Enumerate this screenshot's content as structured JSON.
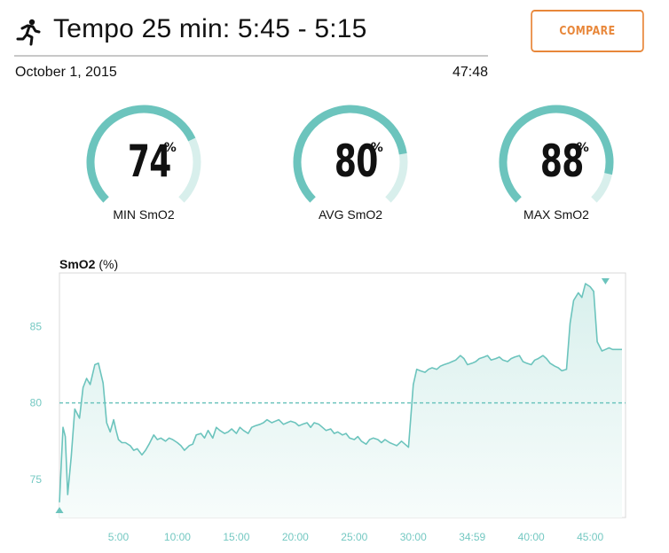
{
  "header": {
    "activity_icon": "running-person-icon",
    "title": "Tempo 25 min: 5:45 - 5:15",
    "compare_label": "COMPARE",
    "date": "October 1, 2015",
    "duration": "47:48"
  },
  "gauges": [
    {
      "value": "74",
      "unit": "%",
      "label": "MIN SmO2",
      "fraction": 0.74
    },
    {
      "value": "80",
      "unit": "%",
      "label": "AVG SmO2",
      "fraction": 0.8
    },
    {
      "value": "88",
      "unit": "%",
      "label": "MAX SmO2",
      "fraction": 0.88
    }
  ],
  "colors": {
    "accent": "#e8873a",
    "teal": "#6cc4bd",
    "teal_light": "#d8efec"
  },
  "chart_data": {
    "type": "area",
    "title": "SmO2",
    "unit": "(%)",
    "ylim": [
      72.5,
      88.5
    ],
    "xlim": [
      0,
      48
    ],
    "yticks": [
      75,
      80,
      85
    ],
    "xticks": [
      {
        "x": 5,
        "label": "5:00"
      },
      {
        "x": 10,
        "label": "10:00"
      },
      {
        "x": 15,
        "label": "15:00"
      },
      {
        "x": 20,
        "label": "20:00"
      },
      {
        "x": 25,
        "label": "25:00"
      },
      {
        "x": 30,
        "label": "30:00"
      },
      {
        "x": 35,
        "label": "34:59"
      },
      {
        "x": 40,
        "label": "40:00"
      },
      {
        "x": 45,
        "label": "45:00"
      }
    ],
    "reference_line": 80,
    "min_marker": {
      "x": 0,
      "y": 73.5
    },
    "max_marker": {
      "x": 46.3,
      "y": 88.3
    },
    "series": [
      {
        "x": [
          0,
          0.3,
          0.5,
          0.7,
          1.0,
          1.3,
          1.7,
          2.0,
          2.3,
          2.6,
          3.0,
          3.3,
          3.7,
          4.0,
          4.3,
          4.6,
          4.8,
          5.0,
          5.3,
          5.6,
          6.0,
          6.3,
          6.6,
          7.0,
          7.3,
          7.6,
          8.0,
          8.3,
          8.6,
          9.0,
          9.3,
          9.6,
          10.0,
          10.3,
          10.6,
          11.0,
          11.3,
          11.6,
          12.0,
          12.3,
          12.6,
          13.0,
          13.3,
          13.6,
          14.0,
          14.3,
          14.6,
          15.0,
          15.3,
          15.6,
          16.0,
          16.3,
          16.6,
          17.0,
          17.3,
          17.6,
          18.0,
          18.3,
          18.6,
          19.0,
          19.3,
          19.6,
          20.0,
          20.3,
          20.6,
          21.0,
          21.3,
          21.6,
          22.0,
          22.3,
          22.6,
          23.0,
          23.3,
          23.6,
          24.0,
          24.3,
          24.6,
          25.0,
          25.3,
          25.6,
          26.0,
          26.3,
          26.6,
          27.0,
          27.3,
          27.6,
          28.0,
          28.3,
          28.6,
          29.0,
          29.3,
          29.6,
          30.0,
          30.3,
          30.6,
          31.0,
          31.3,
          31.6,
          32.0,
          32.3,
          32.6,
          33.0,
          33.3,
          33.6,
          34.0,
          34.3,
          34.6,
          35.0,
          35.3,
          35.6,
          36.0,
          36.3,
          36.6,
          37.0,
          37.3,
          37.6,
          38.0,
          38.3,
          38.6,
          39.0,
          39.3,
          39.6,
          40.0,
          40.3,
          40.6,
          41.0,
          41.3,
          41.6,
          42.0,
          42.3,
          42.6,
          43.0,
          43.3,
          43.6,
          44.0,
          44.3,
          44.6,
          45.0,
          45.3,
          45.6,
          46.0,
          46.3,
          46.6,
          46.9,
          47.1,
          47.4,
          47.7
        ],
        "y": [
          73.5,
          78.4,
          77.8,
          74.0,
          76.5,
          79.6,
          79.0,
          81.0,
          81.6,
          81.2,
          82.5,
          82.6,
          81.3,
          78.7,
          78.1,
          78.9,
          78.2,
          77.6,
          77.4,
          77.4,
          77.2,
          76.9,
          77.0,
          76.6,
          76.9,
          77.3,
          77.9,
          77.6,
          77.7,
          77.5,
          77.7,
          77.6,
          77.4,
          77.2,
          76.9,
          77.2,
          77.3,
          77.9,
          78.0,
          77.7,
          78.2,
          77.7,
          78.4,
          78.2,
          78.0,
          78.1,
          78.3,
          78.0,
          78.4,
          78.2,
          78.0,
          78.4,
          78.5,
          78.6,
          78.7,
          78.9,
          78.7,
          78.8,
          78.9,
          78.6,
          78.7,
          78.8,
          78.7,
          78.5,
          78.6,
          78.7,
          78.4,
          78.7,
          78.6,
          78.4,
          78.2,
          78.3,
          78.0,
          78.1,
          77.9,
          78.0,
          77.7,
          77.6,
          77.8,
          77.5,
          77.3,
          77.6,
          77.7,
          77.6,
          77.4,
          77.6,
          77.4,
          77.3,
          77.2,
          77.5,
          77.3,
          77.1,
          81.2,
          82.2,
          82.1,
          82.0,
          82.2,
          82.3,
          82.2,
          82.4,
          82.5,
          82.6,
          82.7,
          82.8,
          83.1,
          82.9,
          82.5,
          82.6,
          82.7,
          82.9,
          83.0,
          83.1,
          82.8,
          82.9,
          83.0,
          82.8,
          82.7,
          82.9,
          83.0,
          83.1,
          82.7,
          82.6,
          82.5,
          82.8,
          82.9,
          83.1,
          82.9,
          82.6,
          82.4,
          82.3,
          82.1,
          82.2,
          85.2,
          86.7,
          87.2,
          86.9,
          87.8,
          87.6,
          87.3,
          84.0,
          83.4,
          83.5,
          83.6,
          83.5,
          83.5,
          83.5,
          83.5
        ]
      }
    ]
  }
}
